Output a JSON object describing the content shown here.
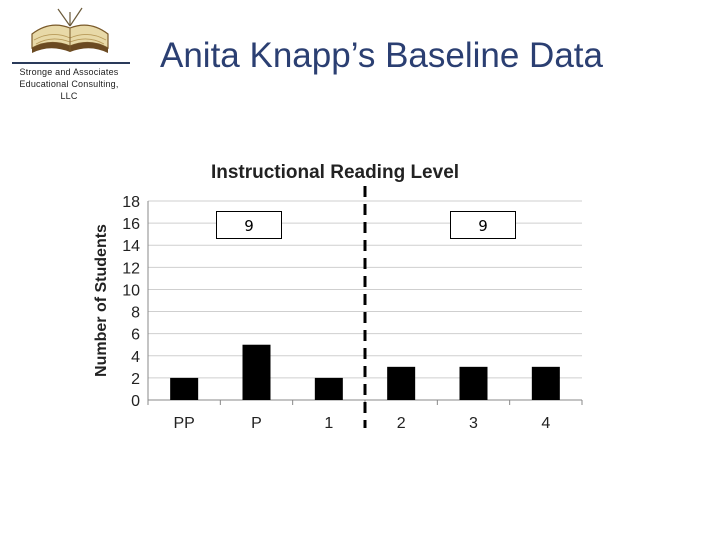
{
  "logo": {
    "line1": "Stronge and Associates",
    "line2": "Educational Consulting,",
    "line3": "LLC",
    "icon": "open-book-icon"
  },
  "page_title": "Anita Knapp’s Baseline Data",
  "chart_data": {
    "type": "bar",
    "title": "Instructional Reading Level",
    "xlabel": "",
    "ylabel": "Number of Students",
    "categories": [
      "PP",
      "P",
      "1",
      "2",
      "3",
      "4"
    ],
    "values": [
      2,
      5,
      2,
      3,
      3,
      3
    ],
    "ylim": [
      0,
      18
    ],
    "yticks": [
      0,
      2,
      4,
      6,
      8,
      10,
      12,
      14,
      16,
      18
    ],
    "grid": true,
    "bar_color": "#000000",
    "divider": "dashed vertical line between 1 and 2",
    "annotations": [
      {
        "text": "9",
        "group": "left"
      },
      {
        "text": "9",
        "group": "right"
      }
    ]
  }
}
